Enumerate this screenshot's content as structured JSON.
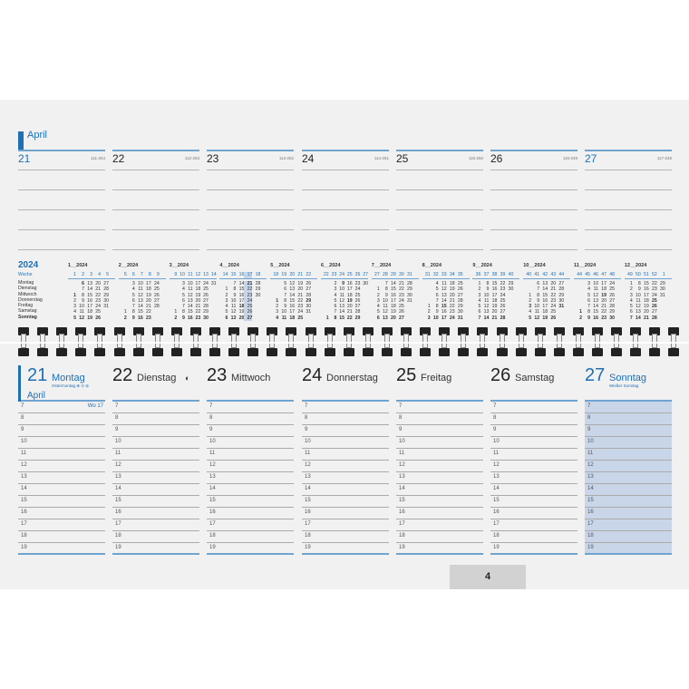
{
  "top": {
    "month": "April",
    "days": [
      {
        "num": "21",
        "code": "111-254",
        "blue": true
      },
      {
        "num": "22",
        "code": "112-253"
      },
      {
        "num": "23",
        "code": "113-252"
      },
      {
        "num": "24",
        "code": "114-251"
      },
      {
        "num": "25",
        "code": "115-250"
      },
      {
        "num": "26",
        "code": "116-249"
      },
      {
        "num": "27",
        "code": "117-248",
        "blue": true
      }
    ]
  },
  "year_overview": {
    "year": "2024",
    "week_label": "Woche",
    "weekdays": [
      "Montag",
      "Dienstag",
      "Mittwoch",
      "Donnerstag",
      "Freitag",
      "Samstag",
      "Sonntag"
    ],
    "highlight": {
      "month": 3,
      "col": 3
    },
    "months": [
      {
        "title": "1__2024",
        "weeks": [
          "1",
          "2",
          "3",
          "4",
          "5"
        ],
        "bold": [
          1,
          6
        ],
        "rows": [
          [
            "",
            6,
            13,
            20,
            27
          ],
          [
            "",
            7,
            14,
            21,
            28
          ],
          [
            1,
            8,
            15,
            22,
            29
          ],
          [
            2,
            9,
            16,
            23,
            30
          ],
          [
            3,
            10,
            17,
            24,
            31
          ],
          [
            4,
            11,
            18,
            25,
            ""
          ],
          [
            5,
            12,
            19,
            26,
            ""
          ]
        ]
      },
      {
        "title": "2__2024",
        "weeks": [
          "5",
          "6",
          "7",
          "8",
          "9"
        ],
        "bold": [],
        "rows": [
          [
            "",
            3,
            10,
            17,
            24
          ],
          [
            "",
            4,
            11,
            18,
            25
          ],
          [
            "",
            5,
            12,
            19,
            26
          ],
          [
            "",
            6,
            13,
            20,
            27
          ],
          [
            "",
            7,
            14,
            21,
            28
          ],
          [
            1,
            8,
            15,
            22,
            ""
          ],
          [
            2,
            9,
            16,
            23,
            ""
          ]
        ]
      },
      {
        "title": "3__2024",
        "weeks": [
          "9",
          "10",
          "11",
          "12",
          "13",
          "14"
        ],
        "bold": [],
        "rows": [
          [
            "",
            3,
            10,
            17,
            24,
            31
          ],
          [
            "",
            4,
            11,
            18,
            25,
            ""
          ],
          [
            "",
            5,
            12,
            19,
            26,
            ""
          ],
          [
            "",
            6,
            13,
            20,
            27,
            ""
          ],
          [
            "",
            7,
            14,
            21,
            28,
            ""
          ],
          [
            1,
            8,
            15,
            22,
            29,
            ""
          ],
          [
            2,
            9,
            16,
            23,
            30,
            ""
          ]
        ]
      },
      {
        "title": "4__2024",
        "weeks": [
          "14",
          "15",
          "16",
          "17",
          "18"
        ],
        "bold": [
          18,
          21
        ],
        "rows": [
          [
            "",
            7,
            14,
            21,
            28
          ],
          [
            1,
            8,
            15,
            22,
            29
          ],
          [
            2,
            9,
            16,
            23,
            30
          ],
          [
            3,
            10,
            17,
            24,
            ""
          ],
          [
            4,
            11,
            18,
            25,
            ""
          ],
          [
            5,
            12,
            19,
            26,
            ""
          ],
          [
            6,
            13,
            20,
            27,
            ""
          ]
        ]
      },
      {
        "title": "5__2024",
        "weeks": [
          "18",
          "19",
          "20",
          "21",
          "22"
        ],
        "bold": [
          1,
          29
        ],
        "rows": [
          [
            "",
            5,
            12,
            19,
            26
          ],
          [
            "",
            6,
            13,
            20,
            27
          ],
          [
            "",
            7,
            14,
            21,
            28
          ],
          [
            1,
            8,
            15,
            22,
            29
          ],
          [
            2,
            9,
            16,
            23,
            30
          ],
          [
            3,
            10,
            17,
            24,
            31
          ],
          [
            4,
            11,
            18,
            25,
            ""
          ]
        ]
      },
      {
        "title": "6__2024",
        "weeks": [
          "22",
          "23",
          "24",
          "25",
          "26",
          "27"
        ],
        "bold": [
          9,
          19
        ],
        "rows": [
          [
            "",
            2,
            9,
            16,
            23,
            30
          ],
          [
            "",
            3,
            10,
            17,
            24,
            ""
          ],
          [
            "",
            4,
            11,
            18,
            25,
            ""
          ],
          [
            "",
            5,
            12,
            19,
            26,
            ""
          ],
          [
            "",
            6,
            13,
            20,
            27,
            ""
          ],
          [
            "",
            7,
            14,
            21,
            28,
            ""
          ],
          [
            1,
            8,
            15,
            22,
            29,
            ""
          ]
        ]
      },
      {
        "title": "7__2024",
        "weeks": [
          "27",
          "28",
          "29",
          "30",
          "31"
        ],
        "bold": [],
        "rows": [
          [
            "",
            7,
            14,
            21,
            28
          ],
          [
            1,
            8,
            15,
            22,
            29
          ],
          [
            2,
            9,
            16,
            23,
            30
          ],
          [
            3,
            10,
            17,
            24,
            31
          ],
          [
            4,
            11,
            18,
            25,
            ""
          ],
          [
            5,
            12,
            19,
            26,
            ""
          ],
          [
            6,
            13,
            20,
            27,
            ""
          ]
        ]
      },
      {
        "title": "8__2024",
        "weeks": [
          "31",
          "32",
          "33",
          "34",
          "35"
        ],
        "bold": [
          15
        ],
        "rows": [
          [
            "",
            4,
            11,
            18,
            25
          ],
          [
            "",
            5,
            12,
            19,
            26
          ],
          [
            "",
            6,
            13,
            20,
            27
          ],
          [
            "",
            7,
            14,
            21,
            28
          ],
          [
            1,
            8,
            15,
            22,
            29
          ],
          [
            2,
            9,
            16,
            23,
            30
          ],
          [
            3,
            10,
            17,
            24,
            31
          ]
        ]
      },
      {
        "title": "9__2024",
        "weeks": [
          "36",
          "37",
          "38",
          "39",
          "40"
        ],
        "bold": [],
        "rows": [
          [
            1,
            8,
            15,
            22,
            29
          ],
          [
            2,
            9,
            16,
            23,
            30
          ],
          [
            3,
            10,
            17,
            24,
            ""
          ],
          [
            4,
            11,
            18,
            25,
            ""
          ],
          [
            5,
            12,
            19,
            26,
            ""
          ],
          [
            6,
            13,
            20,
            27,
            ""
          ],
          [
            7,
            14,
            21,
            28,
            ""
          ]
        ]
      },
      {
        "title": "10__2024",
        "weeks": [
          "40",
          "41",
          "42",
          "43",
          "44"
        ],
        "bold": [
          3,
          31
        ],
        "rows": [
          [
            "",
            6,
            13,
            20,
            27
          ],
          [
            "",
            7,
            14,
            21,
            28
          ],
          [
            1,
            8,
            15,
            22,
            29
          ],
          [
            2,
            9,
            16,
            23,
            30
          ],
          [
            3,
            10,
            17,
            24,
            31
          ],
          [
            4,
            11,
            18,
            25,
            ""
          ],
          [
            5,
            12,
            19,
            26,
            ""
          ]
        ]
      },
      {
        "title": "11__2024",
        "weeks": [
          "44",
          "45",
          "46",
          "47",
          "48"
        ],
        "bold": [
          1,
          19
        ],
        "rows": [
          [
            "",
            3,
            10,
            17,
            24
          ],
          [
            "",
            4,
            11,
            18,
            25
          ],
          [
            "",
            5,
            12,
            19,
            26
          ],
          [
            "",
            6,
            13,
            20,
            27
          ],
          [
            "",
            7,
            14,
            21,
            28
          ],
          [
            1,
            8,
            15,
            22,
            29
          ],
          [
            2,
            9,
            16,
            23,
            30
          ]
        ]
      },
      {
        "title": "12__2024",
        "weeks": [
          "49",
          "50",
          "51",
          "52",
          "1"
        ],
        "bold": [
          25,
          26
        ],
        "rows": [
          [
            1,
            8,
            15,
            22,
            29
          ],
          [
            2,
            9,
            16,
            23,
            30
          ],
          [
            3,
            10,
            17,
            24,
            31
          ],
          [
            4,
            11,
            18,
            25,
            ""
          ],
          [
            5,
            12,
            19,
            26,
            ""
          ],
          [
            6,
            13,
            20,
            27,
            ""
          ],
          [
            7,
            14,
            21,
            28,
            ""
          ]
        ]
      }
    ]
  },
  "week": {
    "month": "April",
    "week_label": "Wo 17",
    "hours": [
      "7",
      "8",
      "9",
      "10",
      "11",
      "12",
      "13",
      "14",
      "15",
      "16",
      "17",
      "18",
      "19"
    ],
    "days": [
      {
        "num": "21",
        "name": "Montag",
        "sub": "Ostermontag ⊕ ⊙ ⊚",
        "blue": true
      },
      {
        "num": "22",
        "name": "Dienstag",
        "moon": "◐"
      },
      {
        "num": "23",
        "name": "Mittwoch"
      },
      {
        "num": "24",
        "name": "Donnerstag"
      },
      {
        "num": "25",
        "name": "Freitag"
      },
      {
        "num": "26",
        "name": "Samstag"
      },
      {
        "num": "27",
        "name": "Sonntag",
        "sub": "Weißer Sonntag",
        "blue": true,
        "shaded": true
      }
    ]
  },
  "page_number": "4",
  "colors": {
    "accent": "#1f6fb5",
    "sunday_shade": "#c9d6ea"
  }
}
